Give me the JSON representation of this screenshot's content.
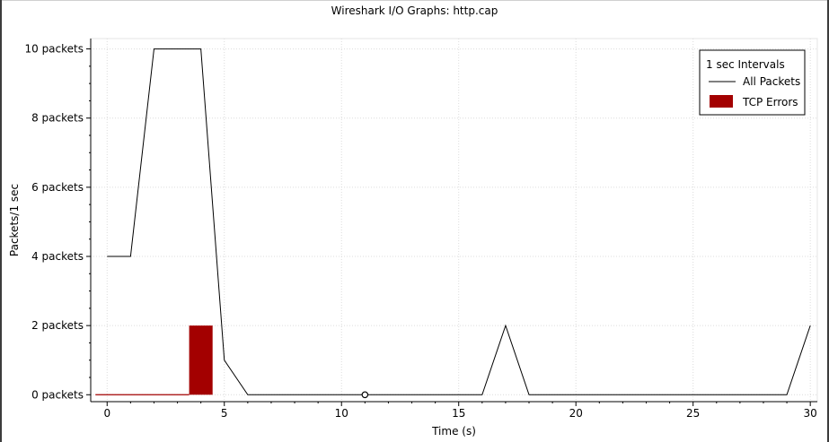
{
  "window_title": "Wireshark I/O Graphs: http.cap",
  "chart_data": {
    "type": "line",
    "title": "Wireshark I/O Graphs: http.cap",
    "xlabel": "Time (s)",
    "ylabel": "Packets/1 sec",
    "xlim": [
      -0.7,
      30.3
    ],
    "ylim": [
      -0.2,
      10.3
    ],
    "x_ticks": [
      0,
      5,
      10,
      15,
      20,
      25,
      30
    ],
    "y_ticks": [
      0,
      2,
      4,
      6,
      8,
      10
    ],
    "y_tick_labels": [
      "0 packets",
      "2 packets",
      "4 packets",
      "6 packets",
      "8 packets",
      "10 packets"
    ],
    "grid": true,
    "legend_position": "top-right",
    "legend_title": "1 sec Intervals",
    "series": [
      {
        "name": "All Packets",
        "type": "line",
        "color": "#000000",
        "x": [
          0,
          1,
          2,
          3,
          4,
          5,
          6,
          7,
          8,
          9,
          10,
          11,
          12,
          13,
          14,
          15,
          16,
          17,
          18,
          19,
          20,
          21,
          22,
          23,
          24,
          25,
          26,
          27,
          28,
          29,
          30
        ],
        "values": [
          4,
          4,
          10,
          10,
          10,
          1,
          0,
          0,
          0,
          0,
          0,
          0,
          0,
          0,
          0,
          0,
          0,
          2,
          0,
          0,
          0,
          0,
          0,
          0,
          0,
          0,
          0,
          0,
          0,
          0,
          2
        ]
      },
      {
        "name": "TCP Errors",
        "type": "bar",
        "color": "#a30000",
        "x": [
          0,
          1,
          2,
          3,
          4
        ],
        "values": [
          0,
          0,
          0,
          0,
          2
        ]
      }
    ],
    "marker": {
      "x": 11,
      "y": 0
    }
  }
}
